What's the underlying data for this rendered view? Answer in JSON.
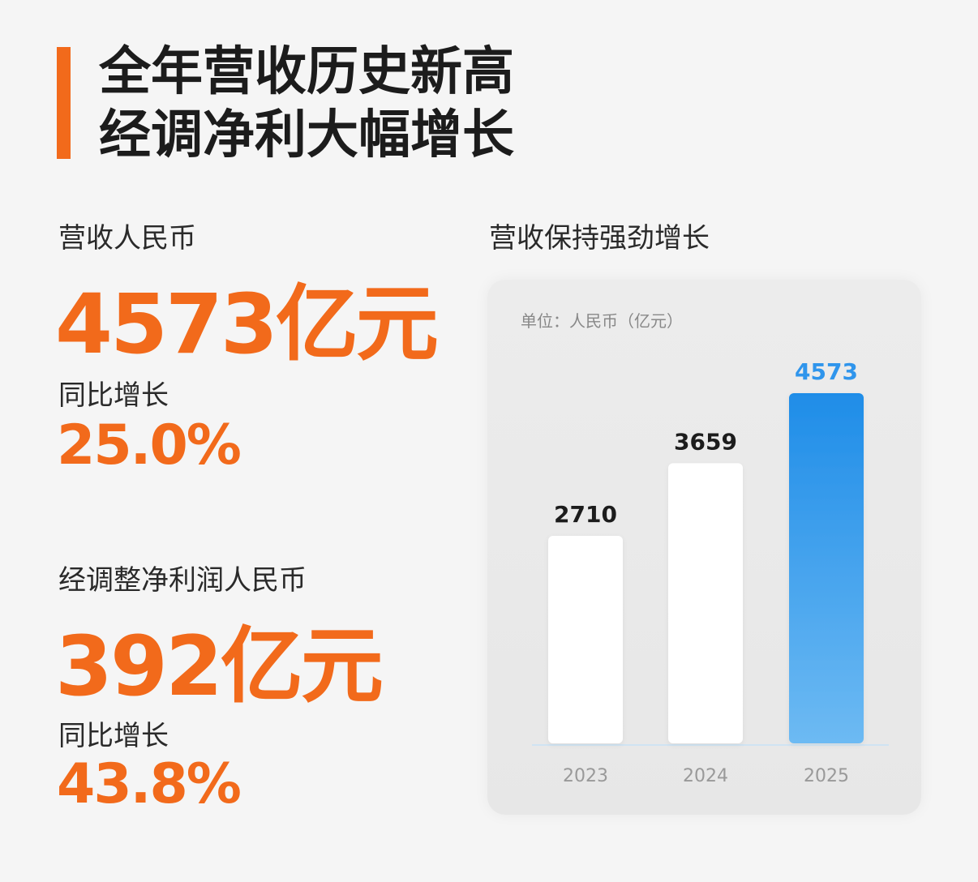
{
  "headline": {
    "line1": "全年营收历史新高",
    "line2": "经调净利大幅增长"
  },
  "revenue": {
    "label": "营收人民币",
    "value": "4573亿元",
    "growth_label": "同比增长",
    "growth_value": "25.0%"
  },
  "profit": {
    "label": "经调整净利润人民币",
    "value": "392亿元",
    "growth_label": "同比增长",
    "growth_value": "43.8%"
  },
  "colors": {
    "accent": "#f26a1b",
    "highlight": "#2f95ec",
    "bar": "#ffffff"
  },
  "chart_data": {
    "type": "bar",
    "title": "营收保持强劲增长",
    "unit_label": "单位：人民币（亿元）",
    "categories": [
      "2023",
      "2024",
      "2025"
    ],
    "values": [
      2710,
      3659,
      4573
    ],
    "highlight_index": 2,
    "ylim": [
      0,
      4573
    ],
    "grid": false,
    "legend": "none"
  }
}
